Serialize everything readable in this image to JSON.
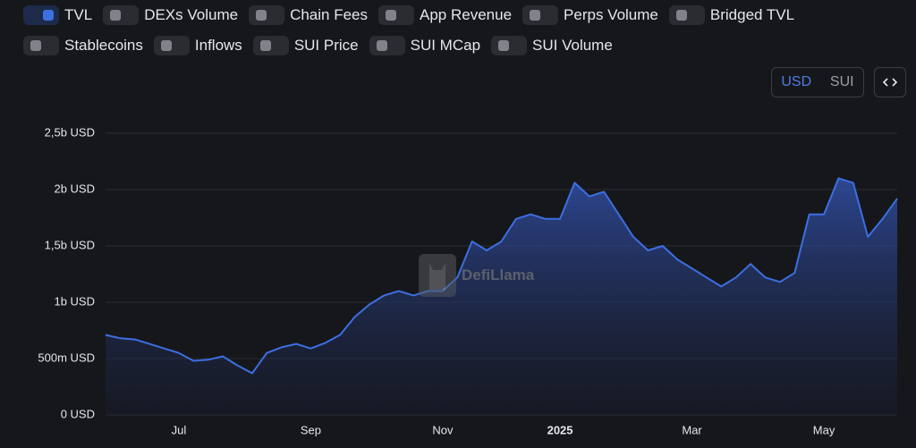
{
  "toggles": [
    {
      "label": "TVL",
      "on": true
    },
    {
      "label": "DEXs Volume",
      "on": false
    },
    {
      "label": "Chain Fees",
      "on": false
    },
    {
      "label": "App Revenue",
      "on": false
    },
    {
      "label": "Perps Volume",
      "on": false
    },
    {
      "label": "Bridged TVL",
      "on": false
    },
    {
      "label": "Stablecoins",
      "on": false
    },
    {
      "label": "Inflows",
      "on": false
    },
    {
      "label": "SUI Price",
      "on": false
    },
    {
      "label": "SUI MCap",
      "on": false
    },
    {
      "label": "SUI Volume",
      "on": false
    }
  ],
  "currency_options": [
    {
      "label": "USD",
      "selected": true
    },
    {
      "label": "SUI",
      "selected": false
    }
  ],
  "watermark": "DefiLlama",
  "chart_data": {
    "type": "area",
    "categories": [
      null,
      null,
      null,
      null,
      null,
      "Jul",
      null,
      null,
      null,
      null,
      null,
      null,
      null,
      null,
      "Sep",
      null,
      null,
      null,
      null,
      null,
      null,
      null,
      null,
      "Nov",
      null,
      null,
      null,
      null,
      null,
      null,
      null,
      "2025",
      null,
      null,
      null,
      null,
      null,
      null,
      null,
      null,
      "Mar",
      null,
      null,
      null,
      null,
      null,
      null,
      null,
      null,
      "May",
      null,
      null,
      null,
      null,
      null
    ],
    "series": [
      {
        "name": "TVL",
        "color": "#3c6fe2",
        "values": [
          710000000,
          680000000,
          670000000,
          630000000,
          590000000,
          550000000,
          480000000,
          490000000,
          520000000,
          440000000,
          370000000,
          550000000,
          600000000,
          630000000,
          590000000,
          640000000,
          710000000,
          870000000,
          980000000,
          1060000000,
          1100000000,
          1060000000,
          1100000000,
          1100000000,
          1220000000,
          1540000000,
          1460000000,
          1540000000,
          1740000000,
          1780000000,
          1740000000,
          1740000000,
          2060000000,
          1940000000,
          1980000000,
          1780000000,
          1580000000,
          1460000000,
          1500000000,
          1380000000,
          1300000000,
          1220000000,
          1140000000,
          1220000000,
          1340000000,
          1220000000,
          1180000000,
          1260000000,
          1780000000,
          1780000000,
          2100000000,
          2060000000,
          1580000000,
          1740000000,
          1920000000
        ]
      }
    ],
    "ylim": [
      0,
      2500000000
    ],
    "yticks": [
      {
        "value": 0,
        "label": "0 USD"
      },
      {
        "value": 500000000,
        "label": "500m USD"
      },
      {
        "value": 1000000000,
        "label": "1b USD"
      },
      {
        "value": 1500000000,
        "label": "1,5b USD"
      },
      {
        "value": 2000000000,
        "label": "2b USD"
      },
      {
        "value": 2500000000,
        "label": "2,5b USD"
      }
    ],
    "bold_category": "2025",
    "grid": true
  }
}
